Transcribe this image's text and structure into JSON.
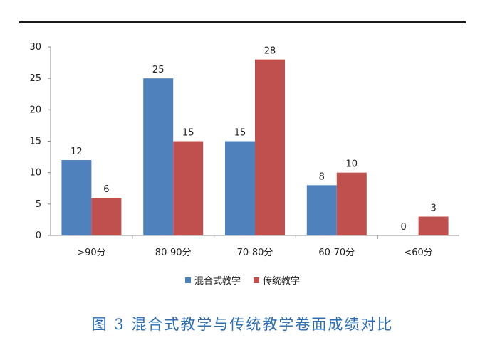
{
  "chart_data": {
    "type": "bar",
    "categories": [
      ">90分",
      "80-90分",
      "70-80分",
      "60-70分",
      "<60分"
    ],
    "series": [
      {
        "name": "混合式教学",
        "values": [
          12,
          25,
          15,
          8,
          0
        ],
        "color": "#4f81bd"
      },
      {
        "name": "传统教学",
        "values": [
          6,
          15,
          28,
          10,
          3
        ],
        "color": "#c0504d"
      }
    ],
    "ylim": [
      0,
      30
    ],
    "yticks": [
      0,
      5,
      10,
      15,
      20,
      25,
      30
    ],
    "grid": false,
    "legend_position": "bottom",
    "caption": "图 3 混合式教学与传统教学卷面成绩对比"
  }
}
